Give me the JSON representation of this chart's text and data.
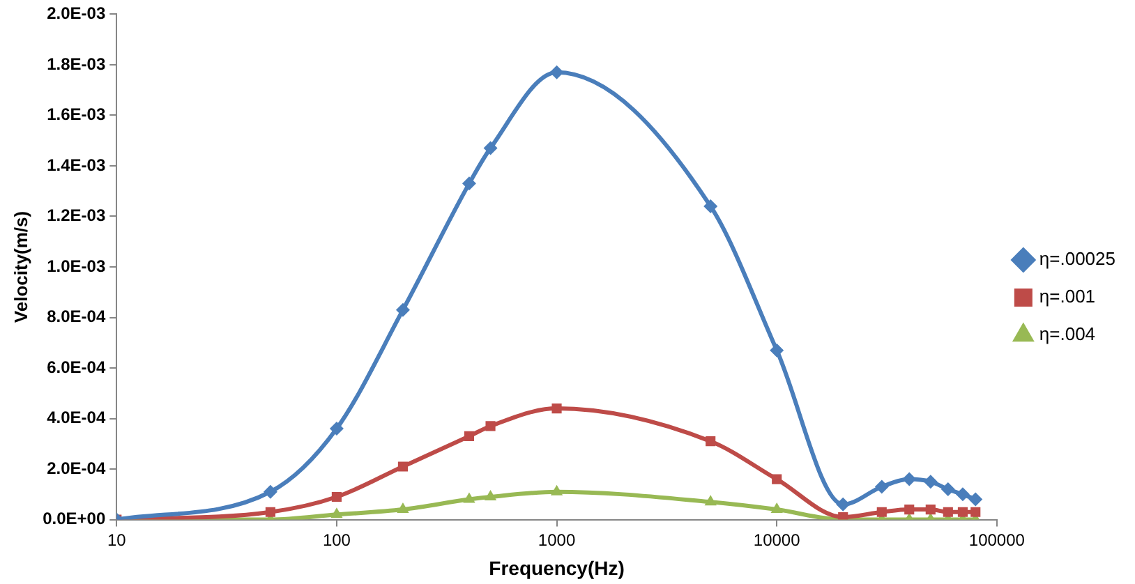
{
  "chart_data": {
    "type": "line",
    "xlabel": "Frequency(Hz)",
    "ylabel": "Velocity(m/s)",
    "log": "x",
    "x": [
      10,
      50,
      100,
      200,
      400,
      500,
      1000,
      5000,
      10000,
      20000,
      30000,
      40000,
      50000,
      60000,
      70000,
      80000
    ],
    "series": [
      {
        "name": "η=.00025",
        "color": "#4a7ebb",
        "marker": "diamond",
        "values": [
          0,
          0.00011,
          0.00036,
          0.00083,
          0.00133,
          0.00147,
          0.00177,
          0.00124,
          0.00067,
          6e-05,
          0.00013,
          0.00016,
          0.00015,
          0.00012,
          0.0001,
          8e-05
        ]
      },
      {
        "name": "η=.001",
        "color": "#be4b48",
        "marker": "square",
        "values": [
          0,
          3e-05,
          9e-05,
          0.00021,
          0.00033,
          0.00037,
          0.00044,
          0.00031,
          0.00016,
          1e-05,
          3e-05,
          4e-05,
          4e-05,
          3e-05,
          3e-05,
          3e-05
        ]
      },
      {
        "name": "η=.004",
        "color": "#98b954",
        "marker": "triangle",
        "values": [
          0,
          0,
          2e-05,
          4e-05,
          8e-05,
          9e-05,
          0.00011,
          7e-05,
          4e-05,
          0,
          0,
          0,
          0,
          0,
          0,
          0
        ]
      }
    ],
    "xlim": [
      10,
      100000
    ],
    "xticks": [
      10,
      100,
      1000,
      10000,
      100000
    ],
    "ylim": [
      0,
      0.002
    ],
    "yticks": [
      {
        "value": 0,
        "label": "0.0E+00"
      },
      {
        "value": 0.0002,
        "label": "2.0E-04"
      },
      {
        "value": 0.0004,
        "label": "4.0E-04"
      },
      {
        "value": 0.0006,
        "label": "6.0E-04"
      },
      {
        "value": 0.0008,
        "label": "8.0E-04"
      },
      {
        "value": 0.001,
        "label": "1.0E-03"
      },
      {
        "value": 0.0012,
        "label": "1.2E-03"
      },
      {
        "value": 0.0014,
        "label": "1.4E-03"
      },
      {
        "value": 0.0016,
        "label": "1.6E-03"
      },
      {
        "value": 0.0018,
        "label": "1.8E-03"
      },
      {
        "value": 0.002,
        "label": "2.0E-03"
      }
    ],
    "grid": false,
    "legend": "right",
    "line_style": "solid"
  }
}
